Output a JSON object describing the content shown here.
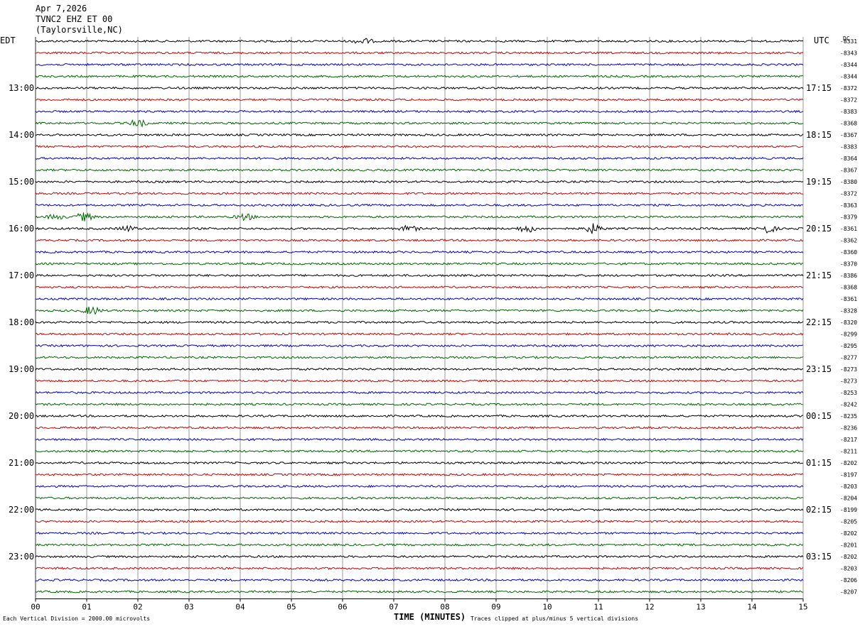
{
  "header": {
    "date": "Apr 7,2026",
    "station": "TVNC2 EHZ ET 00",
    "location": "(Taylorsville,NC)"
  },
  "left_timezone": "EDT",
  "right_timezone": "UTC",
  "dc_label": "DC",
  "footer": {
    "scale_note": "Each Vertical Division = 2000.00 microvolts",
    "xlabel": "TIME (MINUTES)",
    "clip_note": "Traces clipped at plus/minus 5 vertical divisions"
  },
  "colors": {
    "trace_cycle": [
      "#000000",
      "#cc0000",
      "#0000cc",
      "#006600"
    ],
    "grid": "#000000"
  },
  "chart_data": {
    "type": "line",
    "title": "",
    "xlabel": "TIME (MINUTES)",
    "xlim": [
      0,
      15
    ],
    "x_ticks": [
      "00",
      "01",
      "02",
      "03",
      "04",
      "05",
      "06",
      "07",
      "08",
      "09",
      "10",
      "11",
      "12",
      "13",
      "14",
      "15"
    ],
    "left_hour_labels": [
      "13:00",
      "14:00",
      "15:00",
      "16:00",
      "17:00",
      "18:00",
      "19:00",
      "20:00",
      "21:00",
      "22:00",
      "23:00"
    ],
    "right_hour_labels": [
      "17:15",
      "18:15",
      "19:15",
      "20:15",
      "21:15",
      "22:15",
      "23:15",
      "00:15",
      "01:15",
      "02:15",
      "03:15"
    ],
    "dc_offsets": [
      -8331,
      -8343,
      -8344,
      -8344,
      -8372,
      -8372,
      -8383,
      -8368,
      -8367,
      -8383,
      -8364,
      -8367,
      -8380,
      -8372,
      -8363,
      -8379,
      -8361,
      -8362,
      -8360,
      -8370,
      -8386,
      -8368,
      -8361,
      -8328,
      -8320,
      -8299,
      -8295,
      -8277,
      -8273,
      -8273,
      -8253,
      -8242,
      -8235,
      -8236,
      -8217,
      -8211,
      -8202,
      -8197,
      -8203,
      -8204,
      -8199,
      -8205,
      -8202,
      -8201,
      -8202,
      -8203,
      -8206,
      -8207
    ],
    "events": [
      {
        "trace": 0,
        "minute": 6.4,
        "amp": 1.8
      },
      {
        "trace": 7,
        "minute": 2.0,
        "amp": 2.2
      },
      {
        "trace": 15,
        "minute": 0.4,
        "amp": 1.5
      },
      {
        "trace": 15,
        "minute": 0.95,
        "amp": 2.6
      },
      {
        "trace": 15,
        "minute": 4.1,
        "amp": 2.0
      },
      {
        "trace": 16,
        "minute": 1.8,
        "amp": 1.6
      },
      {
        "trace": 16,
        "minute": 7.3,
        "amp": 1.8
      },
      {
        "trace": 16,
        "minute": 9.6,
        "amp": 2.4
      },
      {
        "trace": 16,
        "minute": 10.9,
        "amp": 3.0
      },
      {
        "trace": 16,
        "minute": 14.3,
        "amp": 2.6
      },
      {
        "trace": 23,
        "minute": 1.1,
        "amp": 2.6
      }
    ]
  }
}
